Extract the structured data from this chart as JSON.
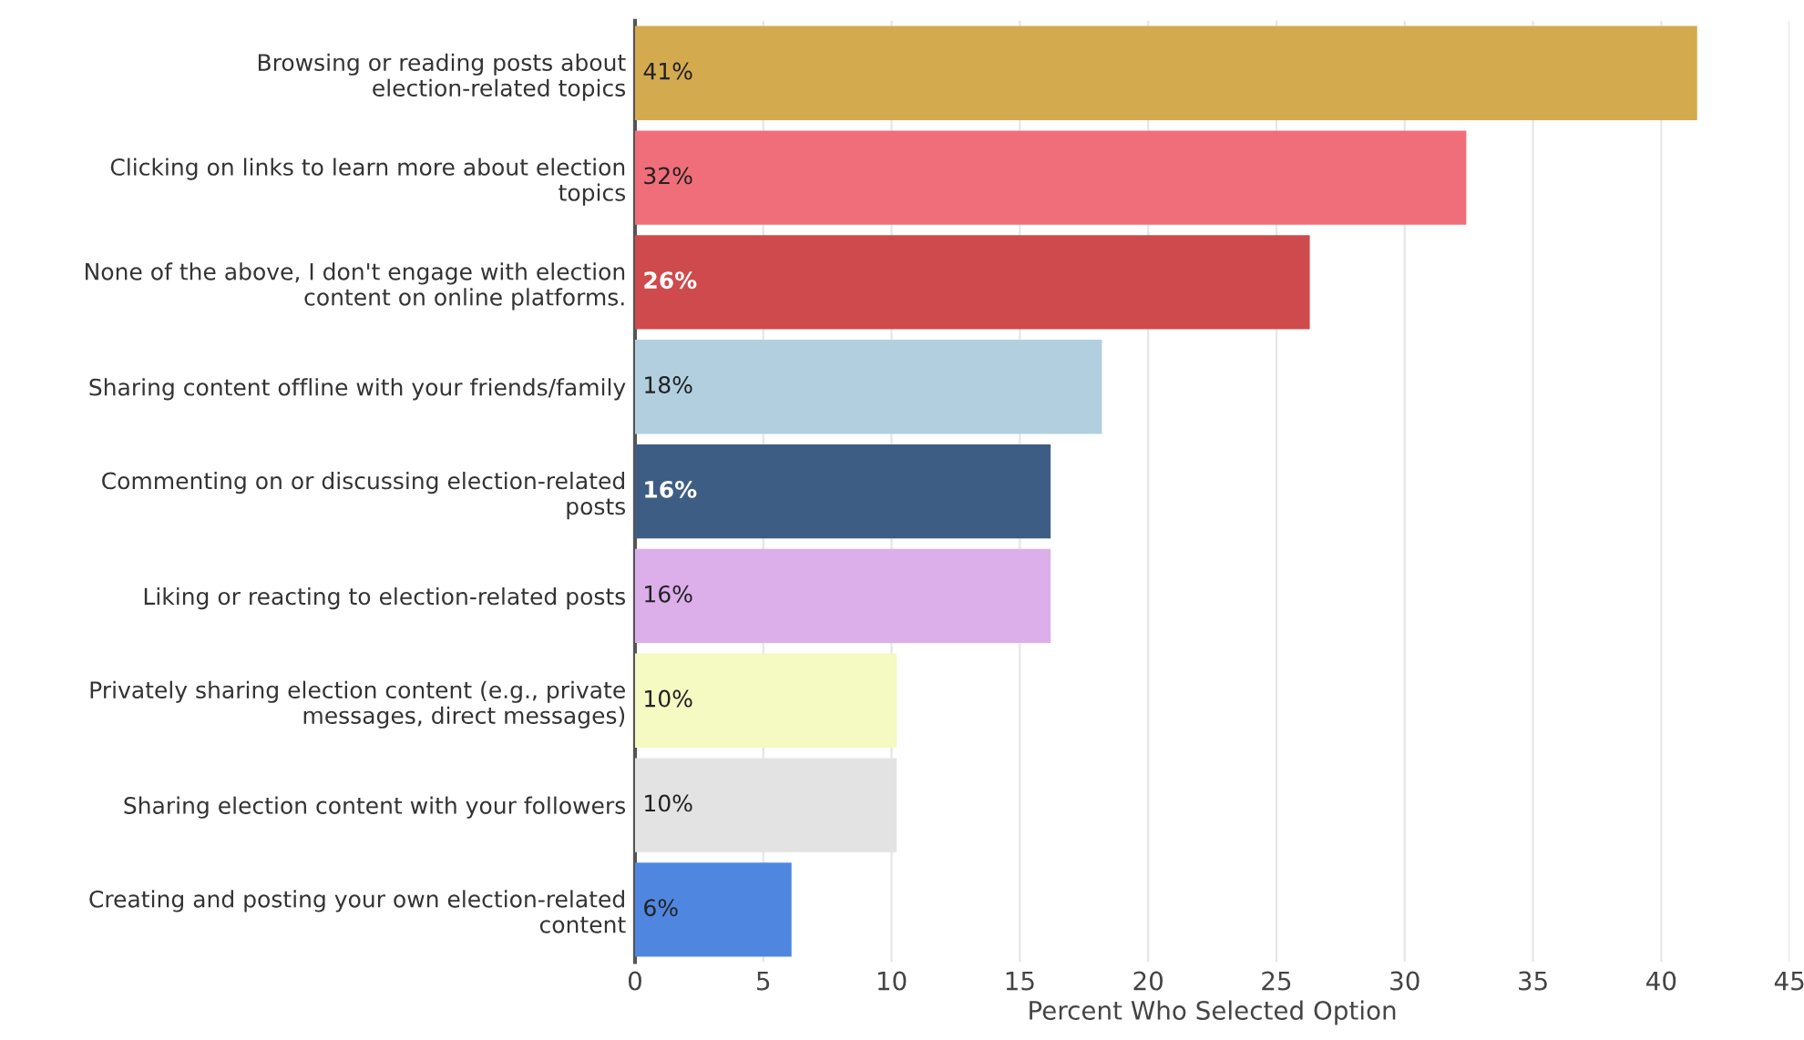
{
  "chart_data": {
    "type": "bar",
    "orientation": "horizontal",
    "categories": [
      "Browsing or reading posts about\nelection-related topics",
      "Clicking on links to learn more about election\ntopics",
      "None of the above, I don't engage with election\ncontent on online platforms.",
      "Sharing content offline with your friends/family",
      "Commenting on or discussing election-related\nposts",
      "Liking or reacting to election-related posts",
      "Privately sharing election content (e.g., private\nmessages, direct messages)",
      "Sharing election content with your followers",
      "Creating and posting your own election-related\ncontent"
    ],
    "values": [
      41.4,
      32.4,
      26.3,
      18.2,
      16.2,
      16.2,
      10.2,
      10.2,
      6.1
    ],
    "colors": [
      "#d4aa4f",
      "#f06e7a",
      "#cf4a4c",
      "#b2cfe0",
      "#3d5d84",
      "#dcaeea",
      "#f5f9c2",
      "#e3e3e3",
      "#4f87e0"
    ],
    "value_labels": [
      "41%",
      "32%",
      "26%",
      "18%",
      "16%",
      "16%",
      "10%",
      "10%",
      "6%"
    ],
    "xlabel": "Percent Who Selected Option",
    "xlim": [
      0,
      45
    ],
    "xticks": [
      0,
      5,
      10,
      15,
      20,
      25,
      30,
      35,
      40,
      45
    ],
    "grid": "x",
    "legend": false
  }
}
